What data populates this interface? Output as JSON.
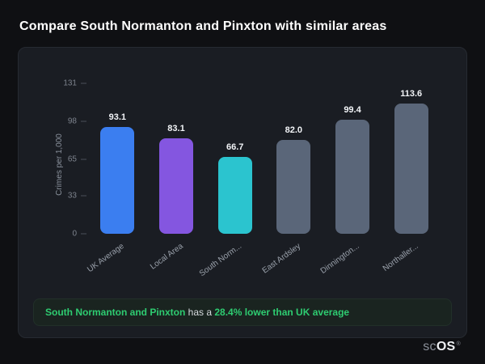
{
  "page": {
    "title": "Compare South Normanton and Pinxton with similar areas"
  },
  "chart_data": {
    "type": "bar",
    "title": "Compare South Normanton and Pinxton with similar areas",
    "ylabel": "Crimes per 1,000",
    "ylim": [
      0,
      131
    ],
    "yticks": [
      131,
      98,
      65,
      33,
      0
    ],
    "categories": [
      "UK Average",
      "Local Area",
      "South Norm...",
      "East Ardsley",
      "Dinnington...",
      "Northaller..."
    ],
    "values": [
      93.1,
      83.1,
      66.7,
      82.0,
      99.4,
      113.6
    ],
    "colors": [
      "#3b7ef0",
      "#8456e0",
      "#2bc4cf",
      "#5a6679",
      "#5a6679",
      "#5a6679"
    ],
    "grid": false,
    "legend": false
  },
  "summary": {
    "area_name": "South Normanton and Pinxton",
    "middle": " has a ",
    "stat": "28.4% lower than UK average",
    "accent_color": "#2ecc71"
  },
  "logo": {
    "prefix": "sc",
    "suffix": "OS",
    "registered": "®"
  }
}
